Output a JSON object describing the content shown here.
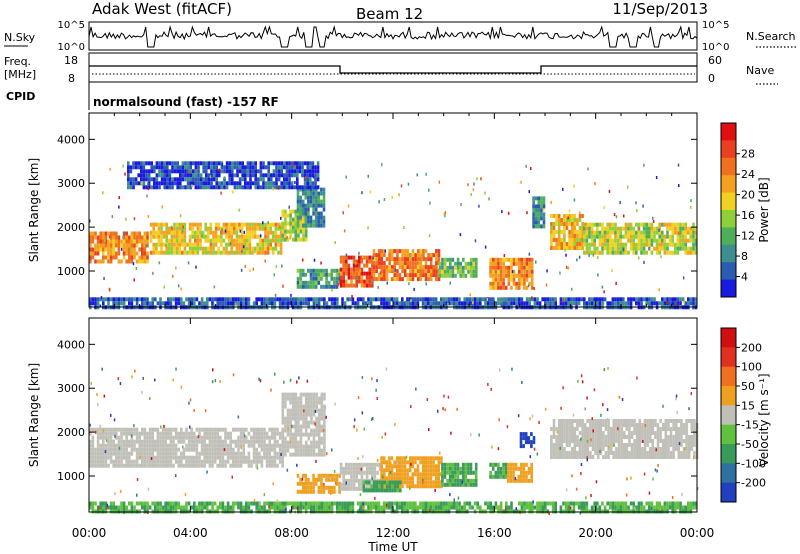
{
  "header": {
    "title": "Adak West (fitACF)",
    "beam": "Beam 12",
    "date": "11/Sep/2013"
  },
  "panels": {
    "nsky": {
      "left_label": "N.Sky",
      "right_label": "N.Search",
      "ticks_left": [
        "10^5",
        "10^0"
      ],
      "ticks_right": [
        "10^5",
        "10^0"
      ]
    },
    "freq": {
      "left_label_1": "Freq.",
      "left_label_2": "[MHz]",
      "ticks_left": [
        "18",
        "8"
      ],
      "right_label": "Nave",
      "ticks_right": [
        "60",
        "0"
      ]
    },
    "cpid": {
      "label": "CPID",
      "text": "normalsound (fast) -157 RF"
    }
  },
  "chart_data": [
    {
      "type": "heatmap",
      "quantity": "Power",
      "ylabel": "Slant Range [km]",
      "ylim": [
        180,
        4600
      ],
      "yticks": [
        "1000",
        "2000",
        "3000",
        "4000"
      ],
      "colorbar": {
        "label": "Power [dB]",
        "ticks": [
          "4",
          "8",
          "12",
          "16",
          "20",
          "24",
          "28"
        ],
        "colors": [
          "#1a1adf",
          "#2a5db0",
          "#3d8f8f",
          "#4fae5a",
          "#8fcf3a",
          "#f0d020",
          "#f6a020",
          "#f07020",
          "#e84020",
          "#e01010"
        ]
      },
      "regions": [
        {
          "t0": 0.0,
          "t1": 2.3,
          "r0": 1250,
          "r1": 1900,
          "p": 22
        },
        {
          "t0": 2.4,
          "t1": 7.6,
          "r0": 1450,
          "r1": 2100,
          "p": 18
        },
        {
          "t0": 7.6,
          "t1": 8.6,
          "r0": 1700,
          "r1": 2400,
          "p": 15
        },
        {
          "t0": 8.2,
          "t1": 9.3,
          "r0": 2000,
          "r1": 2900,
          "p": 9
        },
        {
          "t0": 8.2,
          "t1": 9.9,
          "r0": 650,
          "r1": 1050,
          "p": 10
        },
        {
          "t0": 9.9,
          "t1": 11.2,
          "r0": 700,
          "r1": 1350,
          "p": 25
        },
        {
          "t0": 11.2,
          "t1": 13.8,
          "r0": 800,
          "r1": 1500,
          "p": 22
        },
        {
          "t0": 13.8,
          "t1": 15.3,
          "r0": 850,
          "r1": 1300,
          "p": 13
        },
        {
          "t0": 15.8,
          "t1": 17.5,
          "r0": 650,
          "r1": 1300,
          "p": 22
        },
        {
          "t0": 17.5,
          "t1": 18.0,
          "r0": 2000,
          "r1": 2700,
          "p": 9
        },
        {
          "t0": 18.2,
          "t1": 19.5,
          "r0": 1500,
          "r1": 2300,
          "p": 19
        },
        {
          "t0": 19.5,
          "t1": 24.0,
          "r0": 1400,
          "r1": 2100,
          "p": 16
        },
        {
          "t0": 0.0,
          "t1": 24.0,
          "r0": 190,
          "r1": 400,
          "p": 6
        },
        {
          "t0": 1.5,
          "t1": 9.0,
          "r0": 2900,
          "r1": 3500,
          "p": 5
        }
      ]
    },
    {
      "type": "heatmap",
      "quantity": "Velocity",
      "ylabel": "Slant Range [km]",
      "xlabel": "Time UT",
      "ylim": [
        180,
        4600
      ],
      "yticks": [
        "1000",
        "2000",
        "3000",
        "4000"
      ],
      "xlim": [
        0,
        24
      ],
      "xticks": [
        "00:00",
        "04:00",
        "08:00",
        "12:00",
        "16:00",
        "20:00",
        "00:00"
      ],
      "colorbar": {
        "label": "Velocity [m s⁻¹]",
        "ticks": [
          "200",
          "100",
          "50",
          "15",
          "-15",
          "-50",
          "-100",
          "-200"
        ],
        "colors": [
          "#2040c0",
          "#3070a0",
          "#3a9a5a",
          "#60c040",
          "#c0c0b8",
          "#f0a020",
          "#f07020",
          "#e03020",
          "#d01010"
        ]
      },
      "regions": [
        {
          "t0": 0.0,
          "t1": 7.6,
          "r0": 1250,
          "r1": 2100,
          "v": 0
        },
        {
          "t0": 7.6,
          "t1": 9.3,
          "r0": 1500,
          "r1": 2900,
          "v": 0
        },
        {
          "t0": 8.2,
          "t1": 9.9,
          "r0": 650,
          "r1": 1050,
          "v": -60
        },
        {
          "t0": 9.9,
          "t1": 11.5,
          "r0": 700,
          "r1": 1300,
          "v": 0
        },
        {
          "t0": 11.5,
          "t1": 13.9,
          "r0": 750,
          "r1": 1450,
          "v": -60
        },
        {
          "t0": 10.8,
          "t1": 12.3,
          "r0": 700,
          "r1": 900,
          "v": 40
        },
        {
          "t0": 13.9,
          "t1": 15.3,
          "r0": 800,
          "r1": 1300,
          "v": 40
        },
        {
          "t0": 15.8,
          "t1": 16.5,
          "r0": 950,
          "r1": 1300,
          "v": 40
        },
        {
          "t0": 16.5,
          "t1": 17.5,
          "r0": 850,
          "r1": 1300,
          "v": -60
        },
        {
          "t0": 17.0,
          "t1": 17.6,
          "r0": 1700,
          "r1": 2000,
          "v": 220
        },
        {
          "t0": 18.2,
          "t1": 24.0,
          "r0": 1400,
          "r1": 2300,
          "v": 0
        },
        {
          "t0": 0.0,
          "t1": 24.0,
          "r0": 190,
          "r1": 420,
          "v": 30
        }
      ]
    }
  ]
}
